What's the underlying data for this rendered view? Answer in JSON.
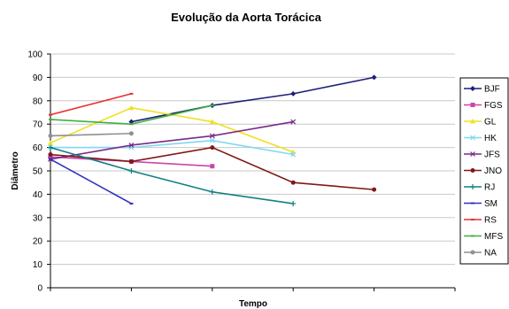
{
  "chart_data": {
    "type": "line",
    "title": "Evolução da Aorta Torácica",
    "xlabel": "Tempo",
    "ylabel": "Diâmetro",
    "ylim": [
      0,
      100
    ],
    "yticks": [
      0,
      10,
      20,
      30,
      40,
      50,
      60,
      70,
      80,
      90,
      100
    ],
    "x": [
      1,
      2,
      3,
      4,
      5
    ],
    "grid": "horizontal",
    "legend_position": "right",
    "series": [
      {
        "name": "BJF",
        "color": "#1f1f7a",
        "marker": "diamond",
        "values": [
          null,
          71,
          78,
          83,
          90
        ]
      },
      {
        "name": "FGS",
        "color": "#cc44aa",
        "marker": "square",
        "values": [
          56,
          54,
          52,
          null,
          null
        ]
      },
      {
        "name": "GL",
        "color": "#f0e020",
        "marker": "triangle",
        "values": [
          62,
          77,
          71,
          58,
          null
        ]
      },
      {
        "name": "HK",
        "color": "#80d8f0",
        "marker": "x",
        "values": [
          60,
          60,
          63,
          57,
          null
        ]
      },
      {
        "name": "JFS",
        "color": "#7a2a8a",
        "marker": "x",
        "values": [
          55,
          61,
          65,
          71,
          null
        ]
      },
      {
        "name": "JNO",
        "color": "#801818",
        "marker": "circle",
        "values": [
          57,
          54,
          60,
          45,
          42
        ]
      },
      {
        "name": "RJ",
        "color": "#108080",
        "marker": "plus",
        "values": [
          60,
          50,
          41,
          36,
          null
        ]
      },
      {
        "name": "SM",
        "color": "#3030c0",
        "marker": "dash",
        "values": [
          55,
          36,
          null,
          null,
          null
        ]
      },
      {
        "name": "RS",
        "color": "#e83030",
        "marker": "dash",
        "values": [
          74,
          83,
          null,
          null,
          null
        ]
      },
      {
        "name": "MFS",
        "color": "#40b040",
        "marker": "dash",
        "values": [
          72,
          70,
          78,
          null,
          null
        ]
      },
      {
        "name": "NA",
        "color": "#909090",
        "marker": "circle",
        "values": [
          65,
          66,
          null,
          null,
          null
        ]
      }
    ]
  }
}
